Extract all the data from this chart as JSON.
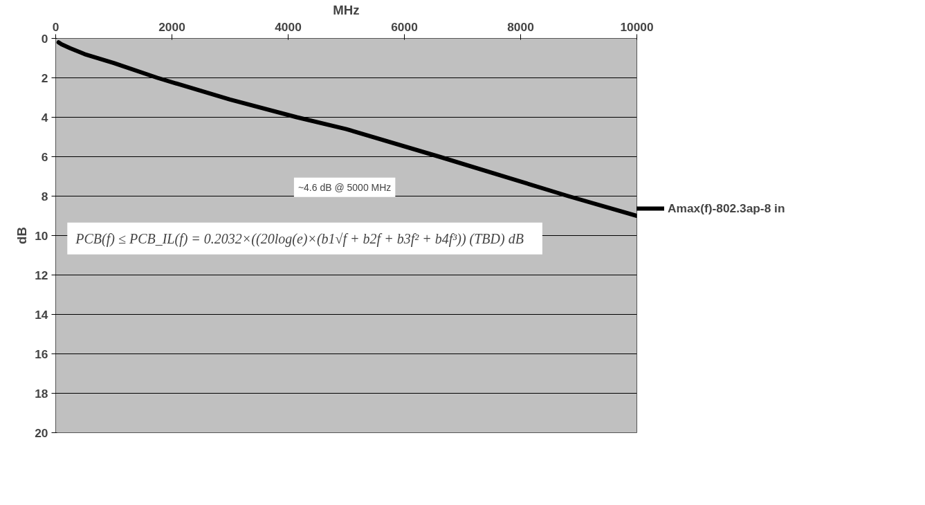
{
  "chart_data": {
    "type": "line",
    "xlabel": "MHz",
    "ylabel": "dB",
    "x": [
      50,
      100,
      250,
      500,
      1000,
      1750,
      3000,
      4150,
      5000,
      6600,
      8820,
      10000
    ],
    "series": [
      {
        "name": "Amax(f)-802.3ap-8 in",
        "color": "#000000",
        "values": [
          0.2,
          0.3,
          0.5,
          0.8,
          1.25,
          2,
          3.1,
          4,
          4.6,
          6,
          8,
          9.0
        ]
      }
    ],
    "xlim": [
      0,
      10000
    ],
    "xticks": [
      0,
      2000,
      4000,
      6000,
      8000,
      10000
    ],
    "ylim": [
      20,
      0
    ],
    "yticks": [
      0,
      2,
      4,
      6,
      8,
      10,
      12,
      14,
      16,
      18,
      20
    ],
    "grid": "y",
    "legend": "right",
    "marker": "none",
    "line_style": "solid",
    "annotations": [
      "~4.6 dB @ 5000 MHz",
      "PCB(f)  ≤ PCB_IL(f) = 0.2032×((20log(e)×(b1√f + b2f + b3f² + b4f³))   (TBD) dB"
    ]
  }
}
